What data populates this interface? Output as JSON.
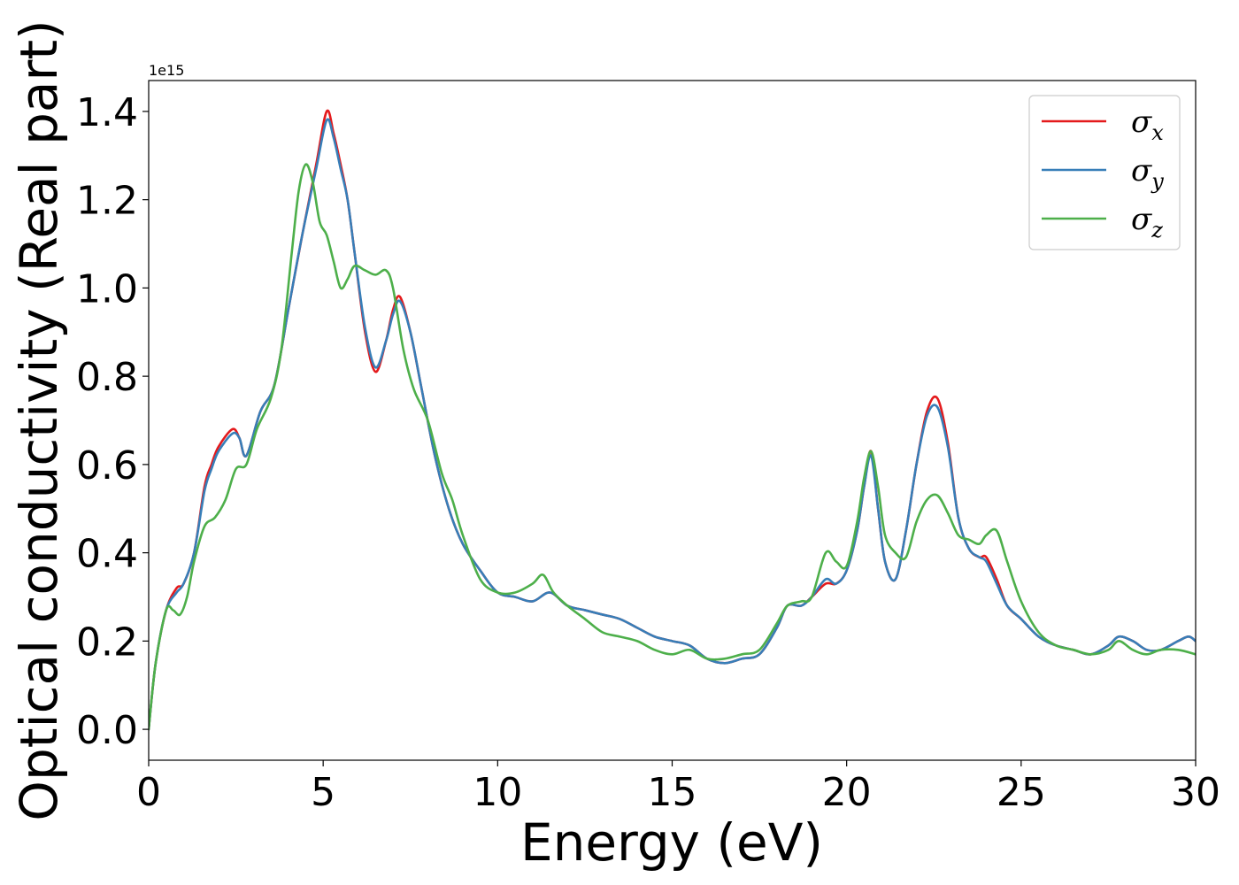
{
  "chart_data": {
    "type": "line",
    "xlabel": "Energy (eV)",
    "ylabel": "Optical conductivity (Real part)",
    "y_offset_label": "1e15",
    "xlim": [
      0,
      30
    ],
    "ylim": [
      -0.07,
      1.47
    ],
    "x_ticks": [
      0,
      5,
      10,
      15,
      20,
      25,
      30
    ],
    "x_tick_labels": [
      "0",
      "5",
      "10",
      "15",
      "20",
      "25",
      "30"
    ],
    "y_ticks": [
      0.0,
      0.2,
      0.4,
      0.6,
      0.8,
      1.0,
      1.2,
      1.4
    ],
    "y_tick_labels": [
      "0.0",
      "0.2",
      "0.4",
      "0.6",
      "0.8",
      "1.0",
      "1.2",
      "1.4"
    ],
    "grid": false,
    "legend_position": "top-right",
    "series": [
      {
        "name": "σx",
        "legend_base": "σ",
        "legend_sub": "x",
        "color": "#e41a1c",
        "x": [
          0,
          0.2,
          0.5,
          0.8,
          1.0,
          1.3,
          1.6,
          1.8,
          2.0,
          2.4,
          2.6,
          2.8,
          3.2,
          3.6,
          4.0,
          4.4,
          4.8,
          5.1,
          5.3,
          5.5,
          5.7,
          5.9,
          6.2,
          6.5,
          6.8,
          7.0,
          7.2,
          7.5,
          7.8,
          8.2,
          8.6,
          9.0,
          9.5,
          10.0,
          10.5,
          11.0,
          11.5,
          12.0,
          12.5,
          13.0,
          13.5,
          14.0,
          14.5,
          15.0,
          15.5,
          16.0,
          16.5,
          17.0,
          17.5,
          18.0,
          18.3,
          18.7,
          19.0,
          19.4,
          19.7,
          20.0,
          20.3,
          20.5,
          20.7,
          20.9,
          21.1,
          21.4,
          21.7,
          22.0,
          22.3,
          22.6,
          22.9,
          23.2,
          23.5,
          23.8,
          24.0,
          24.3,
          24.6,
          25.0,
          25.5,
          26.0,
          26.5,
          27.0,
          27.5,
          27.8,
          28.2,
          28.6,
          29.0,
          29.5,
          29.8,
          30.0
        ],
        "values": [
          0.0,
          0.15,
          0.27,
          0.32,
          0.33,
          0.4,
          0.55,
          0.6,
          0.64,
          0.68,
          0.66,
          0.62,
          0.72,
          0.78,
          0.95,
          1.12,
          1.28,
          1.4,
          1.35,
          1.28,
          1.2,
          1.08,
          0.9,
          0.81,
          0.88,
          0.95,
          0.98,
          0.9,
          0.78,
          0.62,
          0.5,
          0.42,
          0.36,
          0.31,
          0.3,
          0.29,
          0.31,
          0.28,
          0.27,
          0.26,
          0.25,
          0.23,
          0.21,
          0.2,
          0.19,
          0.16,
          0.15,
          0.16,
          0.17,
          0.23,
          0.28,
          0.28,
          0.3,
          0.33,
          0.33,
          0.36,
          0.45,
          0.55,
          0.63,
          0.5,
          0.38,
          0.34,
          0.45,
          0.6,
          0.72,
          0.75,
          0.65,
          0.48,
          0.41,
          0.39,
          0.39,
          0.34,
          0.28,
          0.25,
          0.21,
          0.19,
          0.18,
          0.17,
          0.19,
          0.21,
          0.2,
          0.18,
          0.18,
          0.2,
          0.21,
          0.2
        ]
      },
      {
        "name": "σy",
        "legend_base": "σ",
        "legend_sub": "y",
        "color": "#377eb8",
        "x": [
          0,
          0.2,
          0.5,
          0.8,
          1.0,
          1.3,
          1.6,
          1.8,
          2.0,
          2.4,
          2.6,
          2.8,
          3.2,
          3.6,
          4.0,
          4.4,
          4.8,
          5.1,
          5.3,
          5.5,
          5.7,
          5.9,
          6.2,
          6.5,
          6.8,
          7.0,
          7.2,
          7.5,
          7.8,
          8.2,
          8.6,
          9.0,
          9.5,
          10.0,
          10.5,
          11.0,
          11.5,
          12.0,
          12.5,
          13.0,
          13.5,
          14.0,
          14.5,
          15.0,
          15.5,
          16.0,
          16.5,
          17.0,
          17.5,
          18.0,
          18.3,
          18.7,
          19.0,
          19.4,
          19.7,
          20.0,
          20.3,
          20.5,
          20.7,
          20.9,
          21.1,
          21.4,
          21.7,
          22.0,
          22.3,
          22.6,
          22.9,
          23.2,
          23.5,
          23.8,
          24.0,
          24.3,
          24.6,
          25.0,
          25.5,
          26.0,
          26.5,
          27.0,
          27.5,
          27.8,
          28.2,
          28.6,
          29.0,
          29.5,
          29.8,
          30.0
        ],
        "values": [
          0.0,
          0.15,
          0.27,
          0.31,
          0.33,
          0.4,
          0.54,
          0.59,
          0.63,
          0.67,
          0.66,
          0.62,
          0.72,
          0.78,
          0.95,
          1.12,
          1.27,
          1.38,
          1.34,
          1.27,
          1.2,
          1.08,
          0.91,
          0.82,
          0.88,
          0.94,
          0.97,
          0.9,
          0.78,
          0.62,
          0.5,
          0.42,
          0.36,
          0.31,
          0.3,
          0.29,
          0.31,
          0.28,
          0.27,
          0.26,
          0.25,
          0.23,
          0.21,
          0.2,
          0.19,
          0.16,
          0.15,
          0.16,
          0.17,
          0.23,
          0.28,
          0.28,
          0.3,
          0.34,
          0.33,
          0.36,
          0.45,
          0.55,
          0.62,
          0.5,
          0.38,
          0.34,
          0.45,
          0.6,
          0.71,
          0.73,
          0.64,
          0.48,
          0.41,
          0.39,
          0.38,
          0.33,
          0.28,
          0.25,
          0.21,
          0.19,
          0.18,
          0.17,
          0.19,
          0.21,
          0.2,
          0.18,
          0.18,
          0.2,
          0.21,
          0.2
        ]
      },
      {
        "name": "σz",
        "legend_base": "σ",
        "legend_sub": "z",
        "color": "#4daf4a",
        "x": [
          0,
          0.2,
          0.5,
          0.7,
          0.9,
          1.1,
          1.3,
          1.6,
          1.9,
          2.2,
          2.5,
          2.8,
          3.1,
          3.5,
          3.8,
          4.1,
          4.3,
          4.5,
          4.7,
          4.9,
          5.1,
          5.3,
          5.5,
          5.7,
          5.9,
          6.2,
          6.5,
          6.8,
          7.0,
          7.3,
          7.6,
          8.0,
          8.4,
          8.7,
          9.0,
          9.5,
          10.0,
          10.5,
          11.0,
          11.3,
          11.6,
          12.0,
          12.5,
          13.0,
          13.5,
          14.0,
          14.5,
          15.0,
          15.5,
          16.0,
          16.5,
          17.0,
          17.5,
          18.0,
          18.3,
          18.7,
          19.0,
          19.4,
          19.7,
          20.0,
          20.3,
          20.5,
          20.7,
          20.9,
          21.1,
          21.4,
          21.7,
          22.0,
          22.3,
          22.6,
          22.9,
          23.2,
          23.5,
          23.8,
          24.0,
          24.3,
          24.6,
          25.0,
          25.5,
          26.0,
          26.5,
          27.0,
          27.5,
          27.8,
          28.2,
          28.6,
          29.0,
          29.5,
          30.0
        ],
        "values": [
          0.0,
          0.15,
          0.27,
          0.27,
          0.26,
          0.3,
          0.38,
          0.46,
          0.48,
          0.52,
          0.59,
          0.6,
          0.68,
          0.75,
          0.86,
          1.08,
          1.22,
          1.28,
          1.24,
          1.15,
          1.12,
          1.06,
          1.0,
          1.02,
          1.05,
          1.04,
          1.03,
          1.04,
          1.0,
          0.86,
          0.77,
          0.7,
          0.58,
          0.52,
          0.44,
          0.34,
          0.31,
          0.31,
          0.33,
          0.35,
          0.31,
          0.28,
          0.25,
          0.22,
          0.21,
          0.2,
          0.18,
          0.17,
          0.18,
          0.16,
          0.16,
          0.17,
          0.18,
          0.24,
          0.28,
          0.29,
          0.3,
          0.4,
          0.38,
          0.37,
          0.47,
          0.57,
          0.63,
          0.55,
          0.44,
          0.4,
          0.39,
          0.47,
          0.52,
          0.53,
          0.49,
          0.44,
          0.43,
          0.42,
          0.44,
          0.45,
          0.38,
          0.29,
          0.22,
          0.19,
          0.18,
          0.17,
          0.18,
          0.2,
          0.18,
          0.17,
          0.18,
          0.18,
          0.17
        ]
      }
    ]
  }
}
